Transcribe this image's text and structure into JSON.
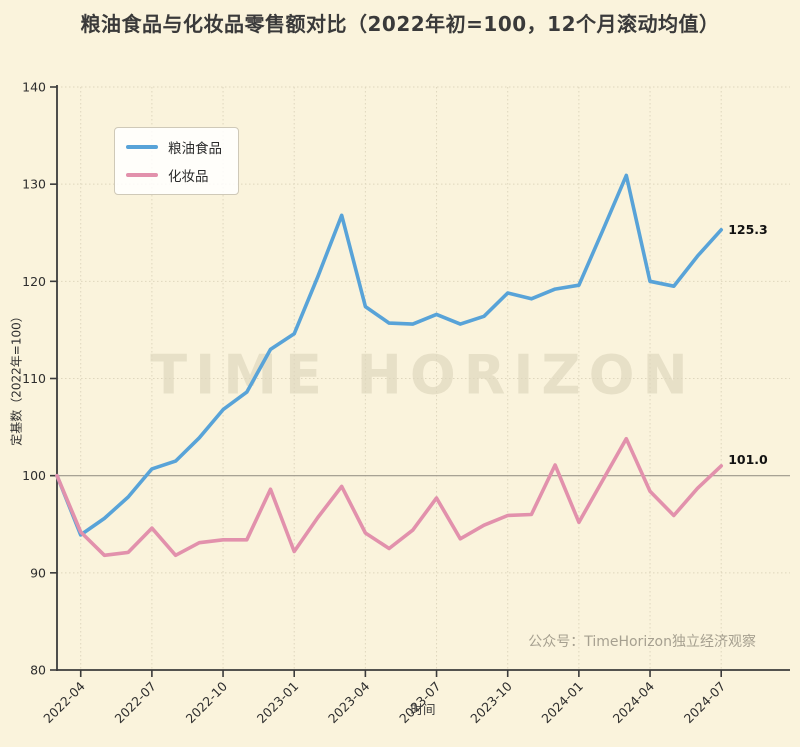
{
  "title": "粮油食品与化妆品零售额对比（2022年初=100，12个月滚动均值）",
  "watermark": "TIME HORIZON",
  "attribution": "公众号：TimeHorizon独立经济观察",
  "chart_data": {
    "type": "line",
    "title": "粮油食品与化妆品零售额对比（2022年初=100，12个月滚动均值）",
    "xlabel": "时间",
    "ylabel": "定基数（2022年=100）",
    "ylim": [
      80,
      140
    ],
    "y_ticks": [
      80,
      90,
      100,
      110,
      120,
      130,
      140
    ],
    "reference_line": 100,
    "grid": "dotted",
    "legend_position": "upper-left",
    "x": [
      "2022-03",
      "2022-04",
      "2022-05",
      "2022-06",
      "2022-07",
      "2022-08",
      "2022-09",
      "2022-10",
      "2022-11",
      "2022-12",
      "2023-01",
      "2023-02",
      "2023-03",
      "2023-04",
      "2023-05",
      "2023-06",
      "2023-07",
      "2023-08",
      "2023-09",
      "2023-10",
      "2023-11",
      "2023-12",
      "2024-01",
      "2024-02",
      "2024-03",
      "2024-04",
      "2024-05",
      "2024-06",
      "2024-07"
    ],
    "x_tick_labels": [
      "2022-04",
      "2022-07",
      "2022-10",
      "2023-01",
      "2023-04",
      "2023-07",
      "2023-10",
      "2024-01",
      "2024-04",
      "2024-07"
    ],
    "series": [
      {
        "name": "粮油食品",
        "color": "#58A3D8",
        "end_label": "125.3",
        "values": [
          100.0,
          93.9,
          95.6,
          97.8,
          100.7,
          101.5,
          103.9,
          106.8,
          108.6,
          113.0,
          114.6,
          120.5,
          126.8,
          117.4,
          115.7,
          115.6,
          116.6,
          115.6,
          116.4,
          118.8,
          118.2,
          119.2,
          119.6,
          125.2,
          130.9,
          120.0,
          119.5,
          122.6,
          125.3
        ]
      },
      {
        "name": "化妆品",
        "color": "#E291AC",
        "end_label": "101.0",
        "values": [
          100.0,
          94.2,
          91.8,
          92.1,
          94.6,
          91.8,
          93.1,
          93.4,
          93.4,
          98.6,
          92.2,
          95.7,
          98.9,
          94.1,
          92.5,
          94.4,
          97.7,
          93.5,
          94.9,
          95.9,
          96.0,
          101.1,
          95.2,
          99.5,
          103.8,
          98.4,
          95.9,
          98.7,
          101.0
        ]
      }
    ],
    "colors": {
      "background": "#FAF3DC",
      "spine": "#3B3B3B",
      "grid": "#DED6BD",
      "reference_line": "#9B968A",
      "tick_text": "#2E2E2E",
      "end_label_text": "#111111"
    }
  }
}
